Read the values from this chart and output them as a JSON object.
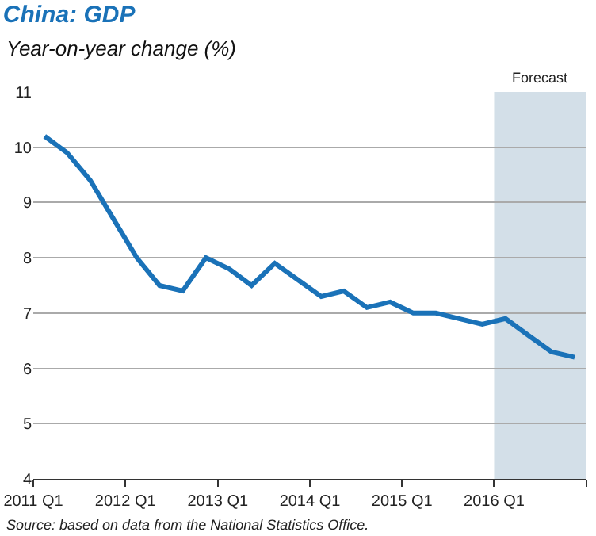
{
  "chart_data": {
    "type": "line",
    "title": "China: GDP",
    "subtitle": "Year-on-year change (%)",
    "x": [
      "2011-02-15",
      "2011-05-15",
      "2011-08-15",
      "2011-11-15",
      "2012-02-15",
      "2012-05-15",
      "2012-08-15",
      "2012-11-15",
      "2013-02-15",
      "2013-05-15",
      "2013-08-15",
      "2013-11-15",
      "2014-02-15",
      "2014-05-15",
      "2014-08-15",
      "2014-11-15",
      "2015-02-15",
      "2015-05-15",
      "2015-08-15",
      "2015-11-15",
      "2016-02-15",
      "2016-05-15",
      "2016-08-15",
      "2016-11-15"
    ],
    "series": [
      {
        "color": "#1a72b8",
        "values": [
          10.2,
          9.9,
          9.4,
          8.7,
          8.0,
          7.5,
          7.4,
          8.0,
          7.8,
          7.5,
          7.9,
          7.6,
          7.3,
          7.4,
          7.1,
          7.2,
          7.0,
          7.0,
          6.9,
          6.8,
          6.9,
          6.6,
          6.3,
          6.2
        ]
      }
    ],
    "xlim": [
      "2011-01-01",
      "2017-01-01"
    ],
    "xticks": [
      {
        "value": "2011-01-01",
        "label": "2011 Q1"
      },
      {
        "value": "2012-01-01",
        "label": "2012 Q1"
      },
      {
        "value": "2013-01-01",
        "label": "2013 Q1"
      },
      {
        "value": "2014-01-01",
        "label": "2014 Q1"
      },
      {
        "value": "2015-01-01",
        "label": "2015 Q1"
      },
      {
        "value": "2016-01-01",
        "label": "2016 Q1"
      },
      {
        "value": "2017-01-01",
        "label": null
      }
    ],
    "ylim": [
      4,
      11
    ],
    "yticks": [
      4,
      5,
      6,
      7,
      8,
      9,
      10,
      11
    ],
    "grid": "y",
    "marker": "none",
    "line_style": "solid",
    "bands": [
      {
        "axis": "x",
        "from": "2016-01-01",
        "to": "2017-01-01",
        "label": "Forecast",
        "color": "#d3dfe8"
      }
    ],
    "annotations": [
      "Source: based on data from the National Statistics Office."
    ]
  }
}
